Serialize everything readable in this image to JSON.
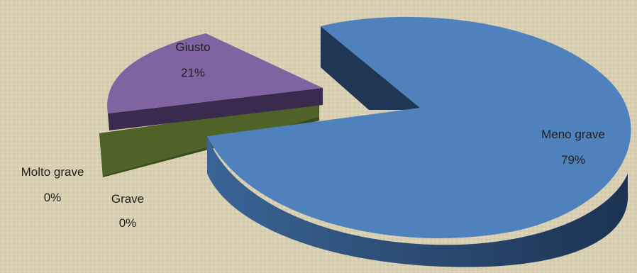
{
  "chart_data": {
    "type": "pie",
    "style": "3d-exploded",
    "slices": [
      {
        "label": "Meno grave",
        "value": 79,
        "value_label": "79%",
        "color": "#4f81bd"
      },
      {
        "label": "Giusto",
        "value": 21,
        "value_label": "21%",
        "color": "#8064a2"
      },
      {
        "label": "Grave",
        "value": 0,
        "value_label": "0%",
        "color": "#4f6228"
      },
      {
        "label": "Molto grave",
        "value": 0,
        "value_label": "0%",
        "color": "#4f6228"
      }
    ],
    "colors": {
      "meno_grave_side": "#1f3a5c",
      "giusto_side": "#3a2a4d",
      "grave_side": "#3a4a1f",
      "background": "#d9cfb3"
    }
  }
}
